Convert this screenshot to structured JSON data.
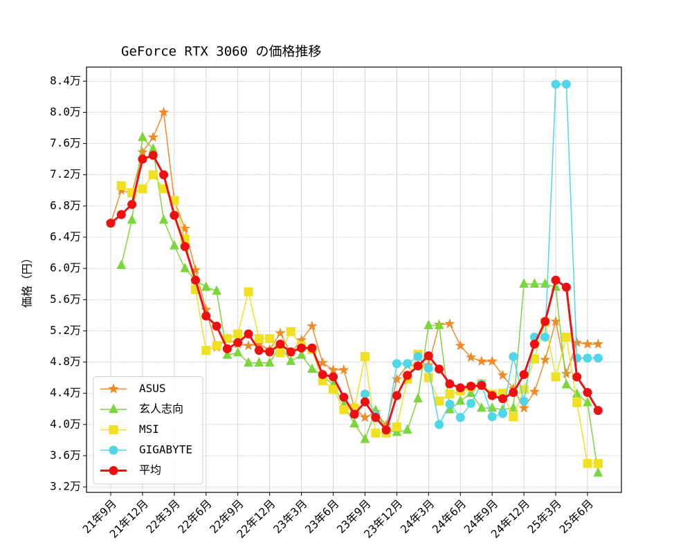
{
  "chart_data": {
    "type": "line",
    "title": "GeForce RTX 3060 の価格推移",
    "y_label": "価格（円）",
    "categories": [
      "21年9月",
      null,
      null,
      "21年12月",
      null,
      null,
      "22年3月",
      null,
      null,
      "22年6月",
      null,
      null,
      "22年9月",
      null,
      null,
      "22年12月",
      null,
      null,
      "23年3月",
      null,
      null,
      "23年6月",
      null,
      null,
      "23年9月",
      null,
      null,
      "23年12月",
      null,
      null,
      "24年3月",
      null,
      null,
      "24年6月",
      null,
      null,
      "24年9月",
      null,
      null,
      "24年12月",
      null,
      null,
      "25年3月",
      null,
      null,
      "25年6月",
      null
    ],
    "ylim": [
      31300,
      85800
    ],
    "yticks": [
      {
        "value": 32000,
        "label": "3.2万"
      },
      {
        "value": 36000,
        "label": "3.6万"
      },
      {
        "value": 40000,
        "label": "4.0万"
      },
      {
        "value": 44000,
        "label": "4.4万"
      },
      {
        "value": 48000,
        "label": "4.8万"
      },
      {
        "value": 52000,
        "label": "5.2万"
      },
      {
        "value": 56000,
        "label": "5.6万"
      },
      {
        "value": 60000,
        "label": "6.0万"
      },
      {
        "value": 64000,
        "label": "6.4万"
      },
      {
        "value": 68000,
        "label": "6.8万"
      },
      {
        "value": 72000,
        "label": "7.2万"
      },
      {
        "value": 76000,
        "label": "7.6万"
      },
      {
        "value": 80000,
        "label": "8.0万"
      },
      {
        "value": 84000,
        "label": "8.4万"
      }
    ],
    "grid": true,
    "legend": "lower left",
    "series": [
      {
        "name": "ASUS",
        "color": "#f08a24",
        "marker": "star",
        "width": 1.5,
        "values": [
          65800,
          70000,
          69600,
          74900,
          76800,
          80000,
          68700,
          65100,
          59800,
          54700,
          49900,
          51000,
          50300,
          50100,
          50300,
          49600,
          51700,
          49200,
          50800,
          52600,
          47900,
          47000,
          47000,
          42100,
          40900,
          41600,
          39900,
          45800,
          47600,
          47600,
          47600,
          52800,
          52900,
          50100,
          48600,
          48100,
          48100,
          46300,
          44600,
          42100,
          44200,
          48300,
          53200,
          46500,
          50500,
          50300,
          50300
        ]
      },
      {
        "name": "玄人志向",
        "color": "#7ad63a",
        "marker": "triangle",
        "width": 1.5,
        "values": [
          null,
          60400,
          66200,
          76800,
          75300,
          66200,
          62900,
          60000,
          58500,
          57600,
          57100,
          48900,
          49200,
          47900,
          47900,
          47900,
          50100,
          48100,
          48900,
          47100,
          46300,
          45100,
          42500,
          40100,
          38100,
          41800,
          39300,
          39000,
          39300,
          43300,
          52700,
          52700,
          41900,
          43000,
          44000,
          42100,
          42100,
          41900,
          42100,
          58000,
          58000,
          58000,
          57600,
          45100,
          43900,
          42800,
          33800
        ]
      },
      {
        "name": "MSI",
        "color": "#f0e020",
        "marker": "square",
        "width": 1.5,
        "values": [
          null,
          70600,
          69700,
          70200,
          72000,
          70200,
          68700,
          63800,
          57300,
          49500,
          50100,
          51000,
          51600,
          57000,
          51000,
          51000,
          49200,
          51900,
          50100,
          49600,
          45600,
          44500,
          41900,
          42100,
          48700,
          38900,
          38900,
          39700,
          45800,
          49000,
          46000,
          43000,
          43900,
          44300,
          44800,
          45200,
          43900,
          44000,
          41000,
          44500,
          48400,
          53100,
          46100,
          51200,
          42800,
          35000,
          35000
        ]
      },
      {
        "name": "GIGABYTE",
        "color": "#4fd6e8",
        "marker": "circle",
        "width": 1.5,
        "values": [
          null,
          null,
          null,
          null,
          null,
          null,
          null,
          null,
          null,
          null,
          null,
          null,
          null,
          null,
          null,
          null,
          null,
          null,
          null,
          null,
          null,
          null,
          null,
          null,
          43900,
          41200,
          39300,
          47800,
          47800,
          48700,
          47200,
          40000,
          42600,
          40900,
          42700,
          45200,
          41000,
          41400,
          48700,
          43000,
          51200,
          51200,
          83600,
          83600,
          48500,
          48500,
          48500
        ]
      },
      {
        "name": "平均",
        "color": "#ee1010",
        "marker": "circle",
        "width": 3,
        "values": [
          65800,
          66900,
          68200,
          74000,
          74500,
          72000,
          66800,
          62800,
          58500,
          53900,
          52600,
          49700,
          50500,
          51600,
          49500,
          49300,
          50300,
          49300,
          49800,
          49800,
          46400,
          46100,
          43500,
          41300,
          42900,
          40900,
          39300,
          43700,
          46300,
          47500,
          48800,
          47100,
          45200,
          44700,
          44900,
          45000,
          43700,
          43300,
          44100,
          46400,
          50300,
          53200,
          58500,
          57600,
          46100,
          44100,
          41800
        ]
      }
    ]
  }
}
